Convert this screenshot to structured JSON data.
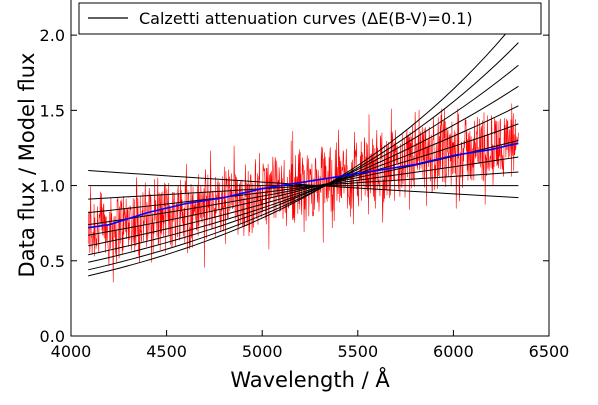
{
  "chart_data": {
    "type": "line",
    "xlabel": "Wavelength / Å",
    "ylabel": "Data flux / Model flux",
    "xlim": [
      4000,
      6500
    ],
    "ylim": [
      0.0,
      2.3
    ],
    "xticks": [
      {
        "value": 4000,
        "label": "4000"
      },
      {
        "value": 4500,
        "label": "4500"
      },
      {
        "value": 5000,
        "label": "5000"
      },
      {
        "value": 5500,
        "label": "5500"
      },
      {
        "value": 6000,
        "label": "6000"
      },
      {
        "value": 6500,
        "label": "6500"
      }
    ],
    "yticks": [
      {
        "value": 0.0,
        "label": "0.0"
      },
      {
        "value": 0.5,
        "label": "0.5"
      },
      {
        "value": 1.0,
        "label": "1.0"
      },
      {
        "value": 1.5,
        "label": "1.5"
      },
      {
        "value": 2.0,
        "label": "2.0"
      }
    ],
    "grid": false,
    "legend": {
      "placement": "top",
      "entries": [
        {
          "label": "Calzetti attenuation curves (ΔE(B-V)=0.1)",
          "color": "#000000"
        }
      ]
    },
    "series": [
      {
        "name": "Calzetti attenuation curves (ΔE(B-V)=0.1)",
        "color": "#000000",
        "x_range": [
          4090,
          6340
        ],
        "pivot_x": 5150,
        "curves": [
          {
            "y_start": 1.1,
            "y_end": 0.92
          },
          {
            "y_start": 1.0,
            "y_end": 1.0
          },
          {
            "y_start": 0.91,
            "y_end": 1.09
          },
          {
            "y_start": 0.82,
            "y_end": 1.19
          },
          {
            "y_start": 0.74,
            "y_end": 1.3
          },
          {
            "y_start": 0.67,
            "y_end": 1.41
          },
          {
            "y_start": 0.6,
            "y_end": 1.53
          },
          {
            "y_start": 0.54,
            "y_end": 1.66
          },
          {
            "y_start": 0.49,
            "y_end": 1.8
          },
          {
            "y_start": 0.44,
            "y_end": 1.95
          },
          {
            "y_start": 0.4,
            "y_end": 2.11
          }
        ]
      },
      {
        "color": "#ff0000",
        "x_range": [
          4090,
          6340
        ],
        "trend_start": 0.7,
        "trend_end": 1.3,
        "scatter_amplitude": 0.45
      },
      {
        "color": "#0000ff",
        "x": [
          4090,
          4200,
          4300,
          4400,
          4500,
          4600,
          4700,
          4800,
          4900,
          5000,
          5100,
          5200,
          5300,
          5400,
          5500,
          5600,
          5700,
          5800,
          5900,
          6000,
          6100,
          6200,
          6300,
          6340
        ],
        "y": [
          0.72,
          0.74,
          0.78,
          0.82,
          0.85,
          0.88,
          0.9,
          0.92,
          0.95,
          0.98,
          1.0,
          1.02,
          1.04,
          1.06,
          1.08,
          1.1,
          1.12,
          1.14,
          1.17,
          1.2,
          1.22,
          1.24,
          1.27,
          1.28
        ]
      }
    ]
  }
}
